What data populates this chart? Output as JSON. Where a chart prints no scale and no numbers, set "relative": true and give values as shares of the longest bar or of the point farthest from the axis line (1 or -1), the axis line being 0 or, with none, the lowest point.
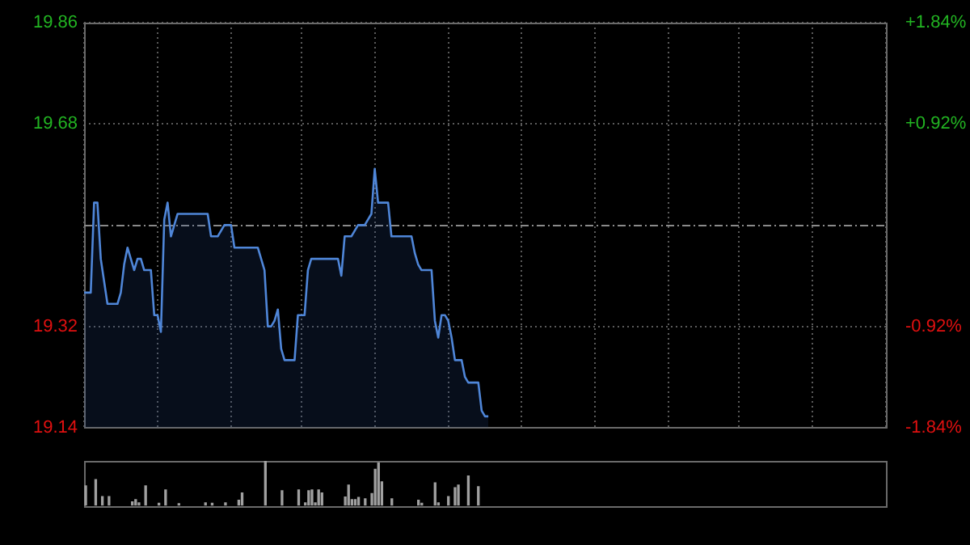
{
  "chart_data": [
    {
      "type": "area",
      "categories": [
        null,
        null,
        null,
        null,
        null,
        null,
        null,
        null,
        null,
        null,
        null,
        null,
        null,
        null,
        null,
        null,
        null,
        null,
        null,
        null,
        null,
        null,
        null,
        null,
        null,
        null,
        null,
        null,
        null,
        null,
        null,
        null,
        null,
        null,
        null,
        null,
        null,
        null,
        null,
        null,
        null,
        null,
        null,
        null,
        null,
        null,
        null,
        null,
        null,
        null,
        null,
        null,
        null,
        null,
        null,
        null,
        null,
        null,
        null,
        null,
        null,
        null,
        null,
        null,
        null,
        null,
        null,
        null,
        null,
        null,
        null,
        null,
        null,
        null,
        null,
        null,
        null,
        null,
        null,
        null,
        null,
        null,
        null,
        null,
        null,
        null,
        null,
        null,
        null,
        null,
        null,
        null,
        null,
        null,
        null,
        null,
        null,
        null,
        null,
        null,
        null,
        null,
        null,
        null,
        null,
        null,
        null,
        null,
        null,
        null,
        null,
        null,
        null,
        null,
        null,
        null,
        null,
        null,
        null,
        null,
        null,
        null,
        null,
        null,
        null,
        null,
        null,
        null,
        null,
        null,
        null,
        null,
        null,
        null,
        null,
        null,
        null,
        null,
        null,
        null,
        null,
        null,
        null,
        null,
        null,
        null,
        null,
        null,
        null,
        null,
        null,
        null,
        null,
        null,
        null,
        null,
        null,
        null,
        null,
        null,
        null,
        null,
        null,
        null,
        null,
        null,
        null,
        null,
        null,
        null,
        null,
        null,
        null,
        null,
        null,
        null,
        null,
        null,
        null,
        null,
        null,
        null,
        null,
        null,
        null,
        null,
        null,
        null,
        null,
        null,
        null,
        null,
        null,
        null,
        null,
        null,
        null,
        null,
        null,
        null,
        null,
        null,
        null,
        null,
        null,
        null,
        null,
        null,
        null,
        null,
        null,
        null,
        null,
        null,
        null,
        null,
        null,
        null,
        null,
        null,
        null,
        null,
        null,
        null,
        null,
        null,
        null,
        null,
        null,
        null,
        null,
        null,
        null,
        null,
        null,
        null,
        null,
        null,
        null,
        null,
        null
      ],
      "series": [
        {
          "color": "#4f86d8",
          "values": [
            19.38,
            19.38,
            19.38,
            19.54,
            19.54,
            19.44,
            19.4,
            19.36,
            19.36,
            19.36,
            19.36,
            19.38,
            19.43,
            19.46,
            19.44,
            19.42,
            19.44,
            19.44,
            19.42,
            19.42,
            19.42,
            19.34,
            19.34,
            19.31,
            19.51,
            19.54,
            19.48,
            19.5,
            19.52,
            19.52,
            19.52,
            19.52,
            19.52,
            19.52,
            19.52,
            19.52,
            19.52,
            19.52,
            19.48,
            19.48,
            19.48,
            19.49,
            19.5,
            19.5,
            19.5,
            19.46,
            19.46,
            19.46,
            19.46,
            19.46,
            19.46,
            19.46,
            19.46,
            19.44,
            19.42,
            19.32,
            19.32,
            19.33,
            19.35,
            19.28,
            19.26,
            19.26,
            19.26,
            19.26,
            19.34,
            19.34,
            19.34,
            19.42,
            19.44,
            19.44,
            19.44,
            19.44,
            19.44,
            19.44,
            19.44,
            19.44,
            19.44,
            19.41,
            19.48,
            19.48,
            19.48,
            19.49,
            19.5,
            19.5,
            19.5,
            19.51,
            19.52,
            19.6,
            19.54,
            19.54,
            19.54,
            19.54,
            19.48,
            19.48,
            19.48,
            19.48,
            19.48,
            19.48,
            19.48,
            19.45,
            19.43,
            19.42,
            19.42,
            19.42,
            19.42,
            19.33,
            19.3,
            19.34,
            19.34,
            19.33,
            19.3,
            19.26,
            19.26,
            19.26,
            19.23,
            19.22,
            19.22,
            19.22,
            19.22,
            19.17,
            19.16,
            19.16,
            null,
            null,
            null,
            null,
            null,
            null,
            null,
            null,
            null,
            null,
            null,
            null,
            null,
            null,
            null,
            null,
            null,
            null,
            null,
            null,
            null,
            null,
            null,
            null,
            null,
            null,
            null,
            null,
            null,
            null,
            null,
            null,
            null,
            null,
            null,
            null,
            null,
            null,
            null,
            null,
            null,
            null,
            null,
            null,
            null,
            null,
            null,
            null,
            null,
            null,
            null,
            null,
            null,
            null,
            null,
            null,
            null,
            null,
            null,
            null,
            null,
            null,
            null,
            null,
            null,
            null,
            null,
            null,
            null,
            null,
            null,
            null,
            null,
            null,
            null,
            null,
            null,
            null,
            null,
            null,
            null,
            null,
            null,
            null,
            null,
            null,
            null,
            null,
            null,
            null,
            null,
            null,
            null,
            null,
            null,
            null,
            null,
            null,
            null,
            null,
            null,
            null,
            null,
            null,
            null,
            null,
            null,
            null,
            null,
            null,
            null,
            null,
            null,
            null,
            null,
            null,
            null,
            null,
            null
          ]
        }
      ],
      "ylim": [
        19.14,
        19.86
      ],
      "yticks": [
        19.14,
        19.32,
        19.68,
        19.86
      ],
      "y2lim": [
        -1.84,
        1.84
      ],
      "y2ticks": [
        {
          "value": -1.84,
          "label": "-1.84%"
        },
        {
          "value": -0.92,
          "label": "-0.92%"
        },
        {
          "value": 0.92,
          "label": "+0.92%"
        },
        {
          "value": 1.84,
          "label": "+1.84%"
        }
      ],
      "ref_lines": [
        {
          "axis": "y",
          "value": 19.5,
          "color": "#8a8a8a",
          "line_style": "dashed"
        }
      ],
      "grid": true,
      "tick_labels": "y",
      "marker": "none",
      "line_style": "solid",
      "legend": false
    },
    {
      "type": "bar",
      "relative": true,
      "categories": [
        null,
        null,
        null,
        null,
        null,
        null,
        null,
        null,
        null,
        null,
        null,
        null,
        null,
        null,
        null,
        null,
        null,
        null,
        null,
        null,
        null,
        null,
        null,
        null,
        null,
        null,
        null,
        null,
        null,
        null,
        null,
        null,
        null,
        null,
        null,
        null,
        null,
        null,
        null,
        null,
        null,
        null,
        null,
        null,
        null,
        null,
        null,
        null,
        null,
        null,
        null,
        null,
        null,
        null,
        null,
        null,
        null,
        null,
        null,
        null,
        null,
        null,
        null,
        null,
        null,
        null,
        null,
        null,
        null,
        null,
        null,
        null,
        null,
        null,
        null,
        null,
        null,
        null,
        null,
        null,
        null,
        null,
        null,
        null,
        null,
        null,
        null,
        null,
        null,
        null,
        null,
        null,
        null,
        null,
        null,
        null,
        null,
        null,
        null,
        null,
        null,
        null,
        null,
        null,
        null,
        null,
        null,
        null,
        null,
        null,
        null,
        null,
        null,
        null,
        null,
        null,
        null,
        null,
        null,
        null,
        null,
        null,
        null,
        null,
        null,
        null,
        null,
        null,
        null,
        null,
        null,
        null,
        null,
        null,
        null,
        null,
        null,
        null,
        null,
        null,
        null,
        null,
        null,
        null,
        null,
        null,
        null,
        null,
        null,
        null,
        null,
        null,
        null,
        null,
        null,
        null,
        null,
        null,
        null,
        null,
        null,
        null,
        null,
        null,
        null,
        null,
        null,
        null,
        null,
        null,
        null,
        null,
        null,
        null,
        null,
        null,
        null,
        null,
        null,
        null,
        null,
        null,
        null,
        null,
        null,
        null,
        null,
        null,
        null,
        null,
        null,
        null,
        null,
        null,
        null,
        null,
        null,
        null,
        null,
        null,
        null,
        null,
        null,
        null,
        null,
        null,
        null,
        null,
        null,
        null,
        null,
        null,
        null,
        null,
        null,
        null,
        null,
        null,
        null,
        null,
        null,
        null,
        null,
        null,
        null,
        null,
        null,
        null,
        null,
        null,
        null,
        null,
        null,
        null,
        null,
        null,
        null,
        null,
        null,
        null,
        null
      ],
      "color": "#a0a0a0",
      "values": [
        0.44,
        null,
        null,
        0.58,
        null,
        0.2,
        null,
        0.2,
        null,
        null,
        null,
        null,
        null,
        null,
        0.08,
        0.13,
        0.06,
        null,
        0.44,
        null,
        null,
        null,
        0.05,
        null,
        0.35,
        null,
        null,
        null,
        0.04,
        null,
        null,
        null,
        null,
        null,
        null,
        null,
        0.06,
        null,
        0.05,
        null,
        null,
        null,
        0.06,
        null,
        null,
        null,
        0.12,
        0.28,
        null,
        null,
        null,
        null,
        null,
        null,
        1,
        null,
        null,
        null,
        null,
        0.33,
        null,
        null,
        null,
        null,
        0.35,
        null,
        0.06,
        0.33,
        0.35,
        0.06,
        0.35,
        0.28,
        null,
        null,
        null,
        null,
        null,
        null,
        0.19,
        0.46,
        0.13,
        0.13,
        0.18,
        null,
        0.15,
        null,
        0.27,
        0.81,
        0.95,
        0.53,
        null,
        null,
        0.15,
        null,
        null,
        null,
        null,
        null,
        null,
        null,
        0.12,
        0.05,
        null,
        null,
        null,
        0.51,
        0.06,
        null,
        null,
        0.2,
        null,
        0.4,
        0.46,
        null,
        null,
        0.66,
        null,
        null,
        0.42,
        null,
        null,
        null,
        null,
        null,
        null,
        null,
        null,
        null,
        null,
        null,
        null,
        null,
        null,
        null,
        null,
        null,
        null,
        null,
        null,
        null,
        null,
        null,
        null,
        null,
        null,
        null,
        null,
        null,
        null,
        null,
        null,
        null,
        null,
        null,
        null,
        null,
        null,
        null,
        null,
        null,
        null,
        null,
        null,
        null,
        null,
        null,
        null,
        null,
        null,
        null,
        null,
        null,
        null,
        null,
        null,
        null,
        null,
        null,
        null,
        null,
        null,
        null,
        null,
        null,
        null,
        null,
        null,
        null,
        null,
        null,
        null,
        null,
        null,
        null,
        null,
        null,
        null,
        null,
        null,
        null,
        null,
        null,
        null,
        null,
        null,
        null,
        null,
        null,
        null,
        null,
        null,
        null,
        null,
        null,
        null,
        null,
        null,
        null,
        null,
        null,
        null,
        null,
        null,
        null,
        null,
        null,
        null,
        null,
        null,
        null,
        null,
        null,
        null,
        null,
        null,
        null,
        null,
        null,
        null,
        null,
        null
      ],
      "legend": false
    }
  ]
}
